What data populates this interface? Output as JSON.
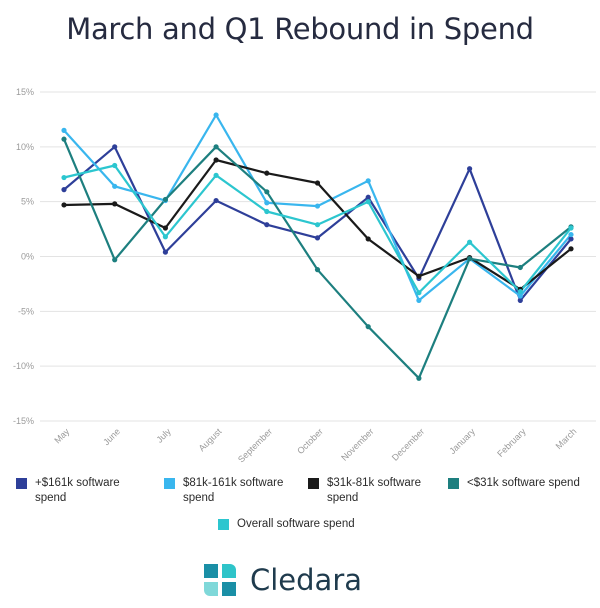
{
  "title": "March and Q1 Rebound in Spend",
  "brand": {
    "name": "Cledara",
    "colors": [
      "#1a8fa6",
      "#2ec4c9",
      "#7fd8d9"
    ]
  },
  "chart_data": {
    "type": "line",
    "categories": [
      "May",
      "June",
      "July",
      "August",
      "September",
      "October",
      "November",
      "December",
      "January",
      "February",
      "March"
    ],
    "ylim": [
      -15,
      15
    ],
    "yticks": [
      15,
      10,
      5,
      0,
      -5,
      -10,
      -15
    ],
    "ytick_labels": [
      "15%",
      "10%",
      "5%",
      "0%",
      "-5%",
      "-10%",
      "-15%"
    ],
    "grid": true,
    "legend_position": "bottom",
    "series": [
      {
        "name": "+$161k software spend",
        "color": "#2e3f99",
        "values": [
          6.1,
          10.0,
          0.4,
          5.1,
          2.9,
          1.7,
          5.4,
          -2.0,
          8.0,
          -4.0,
          1.6
        ]
      },
      {
        "name": "$81k-161k software spend",
        "color": "#39b6ee",
        "values": [
          11.5,
          6.4,
          5.1,
          12.9,
          4.9,
          4.6,
          6.9,
          -4.0,
          -0.2,
          -3.6,
          2.0
        ]
      },
      {
        "name": "$31k-81k software spend",
        "color": "#1a1a1a",
        "values": [
          4.7,
          4.8,
          2.6,
          8.8,
          7.6,
          6.7,
          1.6,
          -1.8,
          -0.1,
          -3.0,
          0.7
        ]
      },
      {
        "name": "<$31k software spend",
        "color": "#1d7f7f",
        "values": [
          10.7,
          -0.3,
          5.2,
          10.0,
          5.9,
          -1.2,
          -6.4,
          -11.1,
          -0.2,
          -1.0,
          2.7
        ]
      },
      {
        "name": "Overall software spend",
        "color": "#2cc6cf",
        "values": [
          7.2,
          8.3,
          1.8,
          7.4,
          4.1,
          2.9,
          5.0,
          -3.3,
          1.3,
          -3.2,
          2.6
        ]
      }
    ]
  }
}
